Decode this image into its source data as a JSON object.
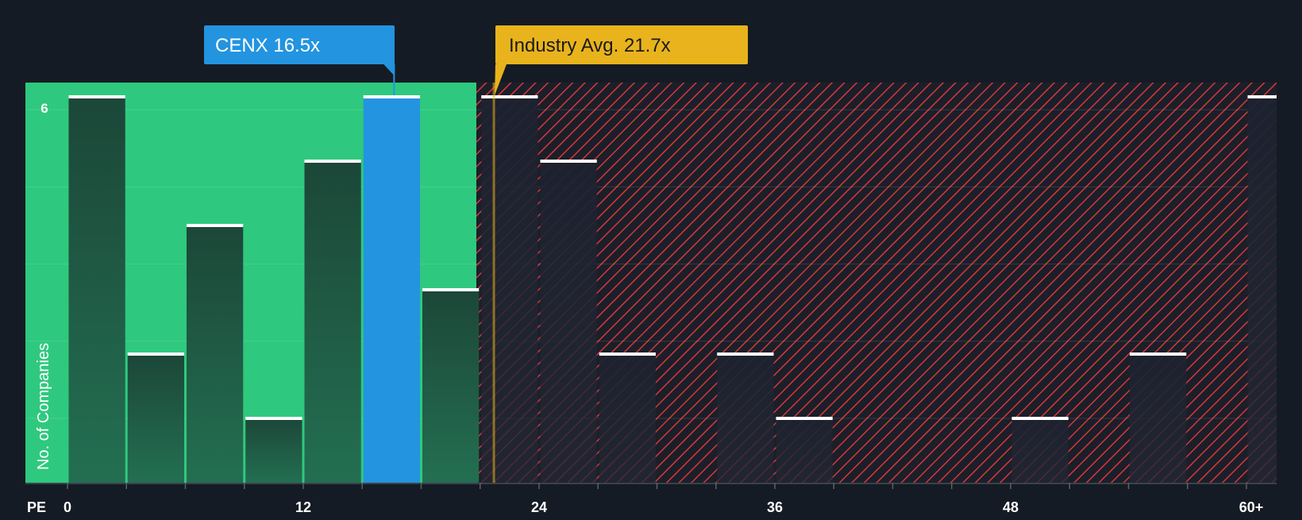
{
  "chart_data": {
    "type": "bar",
    "title": "",
    "xlabel": "PE",
    "ylabel": "No. of Companies",
    "x_ticks": [
      "0",
      "12",
      "24",
      "36",
      "48",
      "60+"
    ],
    "y_ticks": [
      "6"
    ],
    "ylim": [
      0,
      6.2
    ],
    "grid": true,
    "bins": [
      {
        "start": 0,
        "end": 3,
        "count": 6
      },
      {
        "start": 3,
        "end": 6,
        "count": 2
      },
      {
        "start": 6,
        "end": 9,
        "count": 4
      },
      {
        "start": 9,
        "end": 12,
        "count": 1
      },
      {
        "start": 12,
        "end": 15,
        "count": 5
      },
      {
        "start": 15,
        "end": 18,
        "count": 6
      },
      {
        "start": 18,
        "end": 21,
        "count": 3
      },
      {
        "start": 21,
        "end": 24,
        "count": 6
      },
      {
        "start": 24,
        "end": 27,
        "count": 5
      },
      {
        "start": 27,
        "end": 30,
        "count": 2
      },
      {
        "start": 30,
        "end": 33,
        "count": 0
      },
      {
        "start": 33,
        "end": 36,
        "count": 2
      },
      {
        "start": 36,
        "end": 39,
        "count": 1
      },
      {
        "start": 39,
        "end": 42,
        "count": 0
      },
      {
        "start": 42,
        "end": 45,
        "count": 0
      },
      {
        "start": 45,
        "end": 48,
        "count": 0
      },
      {
        "start": 48,
        "end": 51,
        "count": 1
      },
      {
        "start": 51,
        "end": 54,
        "count": 0
      },
      {
        "start": 54,
        "end": 57,
        "count": 2
      },
      {
        "start": 57,
        "end": 60,
        "count": 0
      },
      {
        "start": 60,
        "end": 63,
        "count": 6
      }
    ],
    "highlight_bin_start": 15,
    "company": {
      "label": "CENX 16.5x",
      "value": 16.5
    },
    "industry": {
      "label": "Industry Avg. 21.7x",
      "value": 21.7
    },
    "colors": {
      "background": "#151b24",
      "fair_zone": "#2ec97e",
      "bar_fair": "#1e4a3d",
      "bar_highlight": "#2394e0",
      "bar_over": "#1b212d",
      "hatch": "#d8363b",
      "industry": "#e8b31c",
      "company": "#2394e0",
      "bar_cap": "#ffffff",
      "axis_text": "#ffffff"
    }
  }
}
